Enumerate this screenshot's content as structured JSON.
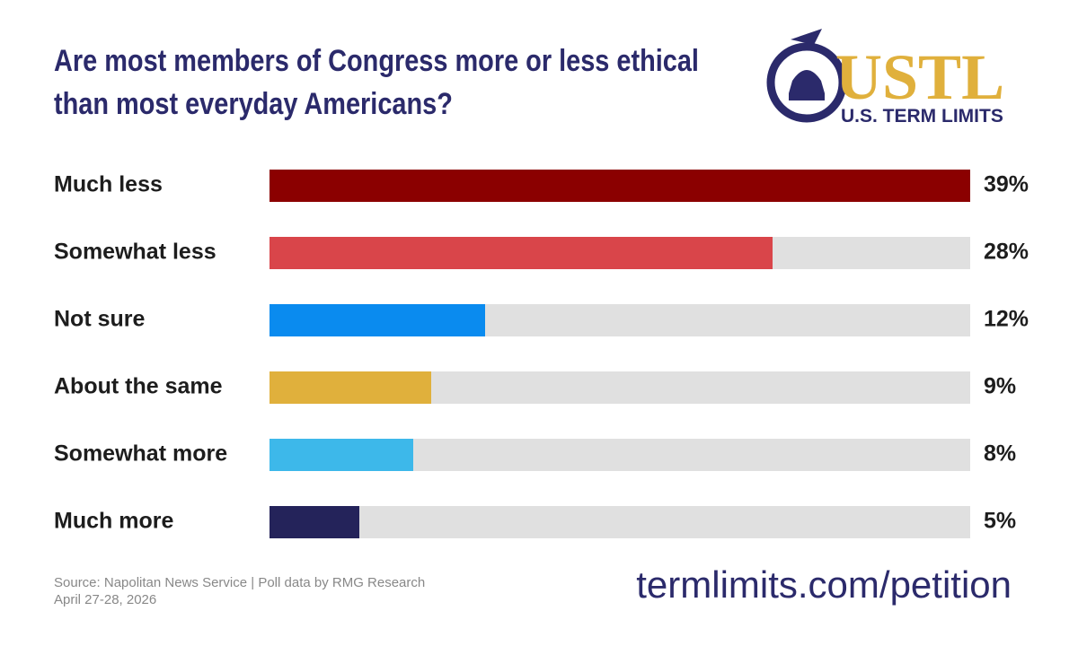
{
  "chart_data": {
    "type": "bar",
    "orientation": "horizontal",
    "title": "Are most members of Congress more or less ethical than most everyday Americans?",
    "categories": [
      "Much less",
      "Somewhat less",
      "Not sure",
      "About the same",
      "Somewhat more",
      "Much more"
    ],
    "values": [
      39,
      28,
      12,
      9,
      8,
      5
    ],
    "value_labels": [
      "39%",
      "28%",
      "12%",
      "9%",
      "8%",
      "5%"
    ],
    "colors": [
      "#8b0000",
      "#d9454a",
      "#0a8bef",
      "#e0b03c",
      "#3db8ea",
      "#24235a"
    ],
    "xlim": [
      0,
      39
    ],
    "source": "Source: Napolitan News Service | Poll data by RMG Research",
    "date": "April 27-28, 2026",
    "url": "termlimits.com/petition",
    "logo": {
      "name": "USTL",
      "tagline": "U.S. TERM LIMITS"
    }
  }
}
